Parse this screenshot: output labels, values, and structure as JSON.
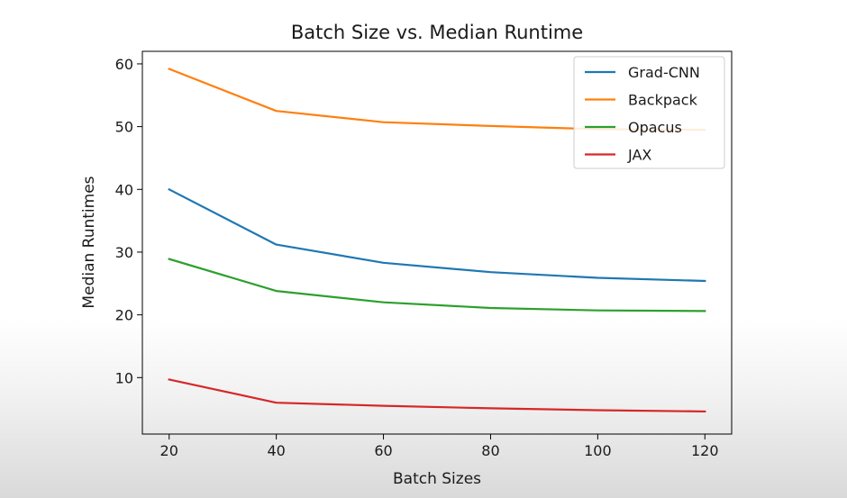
{
  "chart_data": {
    "type": "line",
    "title": "Batch Size vs. Median Runtime",
    "xlabel": "Batch Sizes",
    "ylabel": "Median Runtimes",
    "x": [
      20,
      40,
      60,
      80,
      100,
      120
    ],
    "xlim": [
      15,
      125
    ],
    "ylim": [
      1,
      62
    ],
    "xticks": [
      20,
      40,
      60,
      80,
      100,
      120
    ],
    "yticks": [
      10,
      20,
      30,
      40,
      50,
      60
    ],
    "grid": false,
    "legend_position": "top-right",
    "series": [
      {
        "name": "Grad-CNN",
        "color": "#1f77b4",
        "values": [
          40.0,
          31.2,
          28.3,
          26.8,
          25.9,
          25.4
        ]
      },
      {
        "name": "Backpack",
        "color": "#ff7f0e",
        "values": [
          59.2,
          52.5,
          50.7,
          50.1,
          49.6,
          49.5
        ]
      },
      {
        "name": "Opacus",
        "color": "#2ca02c",
        "values": [
          28.9,
          23.8,
          22.0,
          21.1,
          20.7,
          20.6
        ]
      },
      {
        "name": "JAX",
        "color": "#d62728",
        "values": [
          9.7,
          6.0,
          5.5,
          5.1,
          4.8,
          4.6
        ]
      }
    ]
  }
}
